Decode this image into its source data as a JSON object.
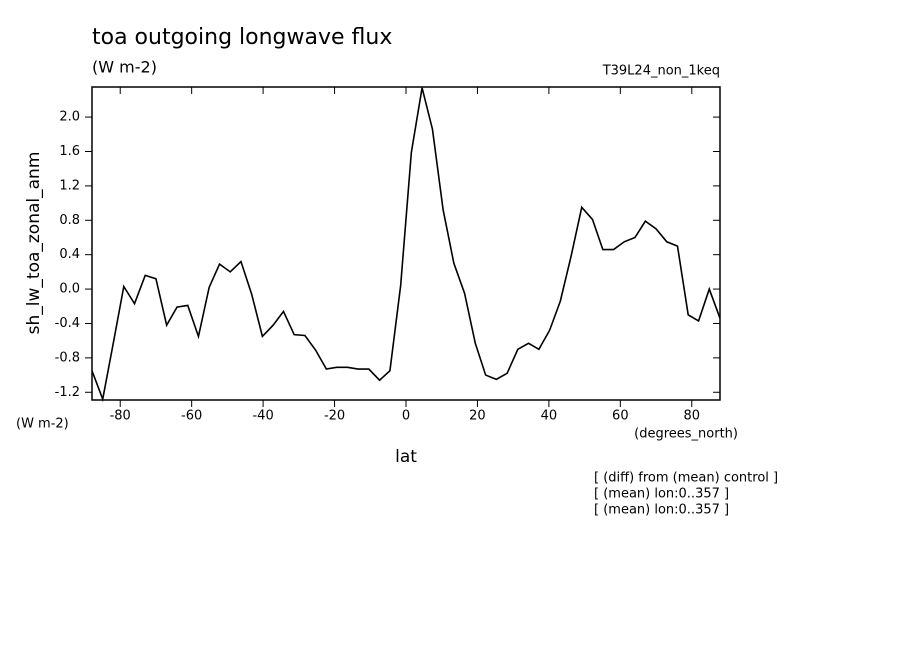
{
  "chart_data": {
    "type": "line",
    "title": "toa outgoing longwave flux",
    "subtitle": "(W m-2)",
    "run_label": "T39L24_non_1keq",
    "y_label": "sh_lw_toa_zonal_anm",
    "y_units": "(W m-2)",
    "x_label": "lat",
    "x_units": "(degrees_north)",
    "notes": [
      "[ (diff) from (mean) control ]",
      "[ (mean) lon:0..357 ]",
      "[ (mean) lon:0..357 ]"
    ],
    "x": [
      -87.9,
      -84.9,
      -81.9,
      -79.0,
      -76.0,
      -73.0,
      -70.0,
      -67.0,
      -64.1,
      -61.1,
      -58.1,
      -55.1,
      -52.2,
      -49.2,
      -46.2,
      -43.2,
      -40.2,
      -37.2,
      -34.3,
      -31.3,
      -28.3,
      -25.3,
      -22.3,
      -19.4,
      -16.4,
      -13.4,
      -10.4,
      -7.4,
      -4.5,
      -1.5,
      1.5,
      4.5,
      7.4,
      10.4,
      13.4,
      16.4,
      19.4,
      22.3,
      25.3,
      28.3,
      31.3,
      34.3,
      37.2,
      40.2,
      43.2,
      46.2,
      49.2,
      52.2,
      55.1,
      58.1,
      61.1,
      64.1,
      67.0,
      70.0,
      73.0,
      76.0,
      79.0,
      81.9,
      84.9,
      87.9
    ],
    "series": [
      {
        "color": "#000000",
        "values": [
          -0.95,
          -1.28,
          -0.62,
          0.03,
          -0.17,
          0.16,
          0.12,
          -0.42,
          -0.21,
          -0.19,
          -0.55,
          0.02,
          0.29,
          0.2,
          0.32,
          -0.06,
          -0.55,
          -0.42,
          -0.26,
          -0.53,
          -0.54,
          -0.71,
          -0.93,
          -0.91,
          -0.91,
          -0.93,
          -0.93,
          -1.06,
          -0.95,
          0.04,
          1.59,
          2.34,
          1.86,
          0.92,
          0.3,
          -0.05,
          -0.63,
          -1.0,
          -1.05,
          -0.98,
          -0.7,
          -0.63,
          -0.7,
          -0.48,
          -0.14,
          0.38,
          0.95,
          0.81,
          0.46,
          0.46,
          0.55,
          0.6,
          0.79,
          0.7,
          0.55,
          0.5,
          -0.3,
          -0.37,
          0.0,
          -0.34
        ]
      }
    ],
    "xlim": [
      -87.9,
      87.9
    ],
    "xticks": [
      -80,
      -60,
      -40,
      -20,
      0,
      20,
      40,
      60,
      80
    ],
    "ylim": [
      -1.29,
      2.35
    ],
    "yticks": [
      -1.2,
      -0.8,
      -0.4,
      {
        "value": 0,
        "label": "0.0"
      },
      0.4,
      0.8,
      1.2,
      1.6,
      {
        "value": 2,
        "label": "2.0"
      }
    ]
  }
}
